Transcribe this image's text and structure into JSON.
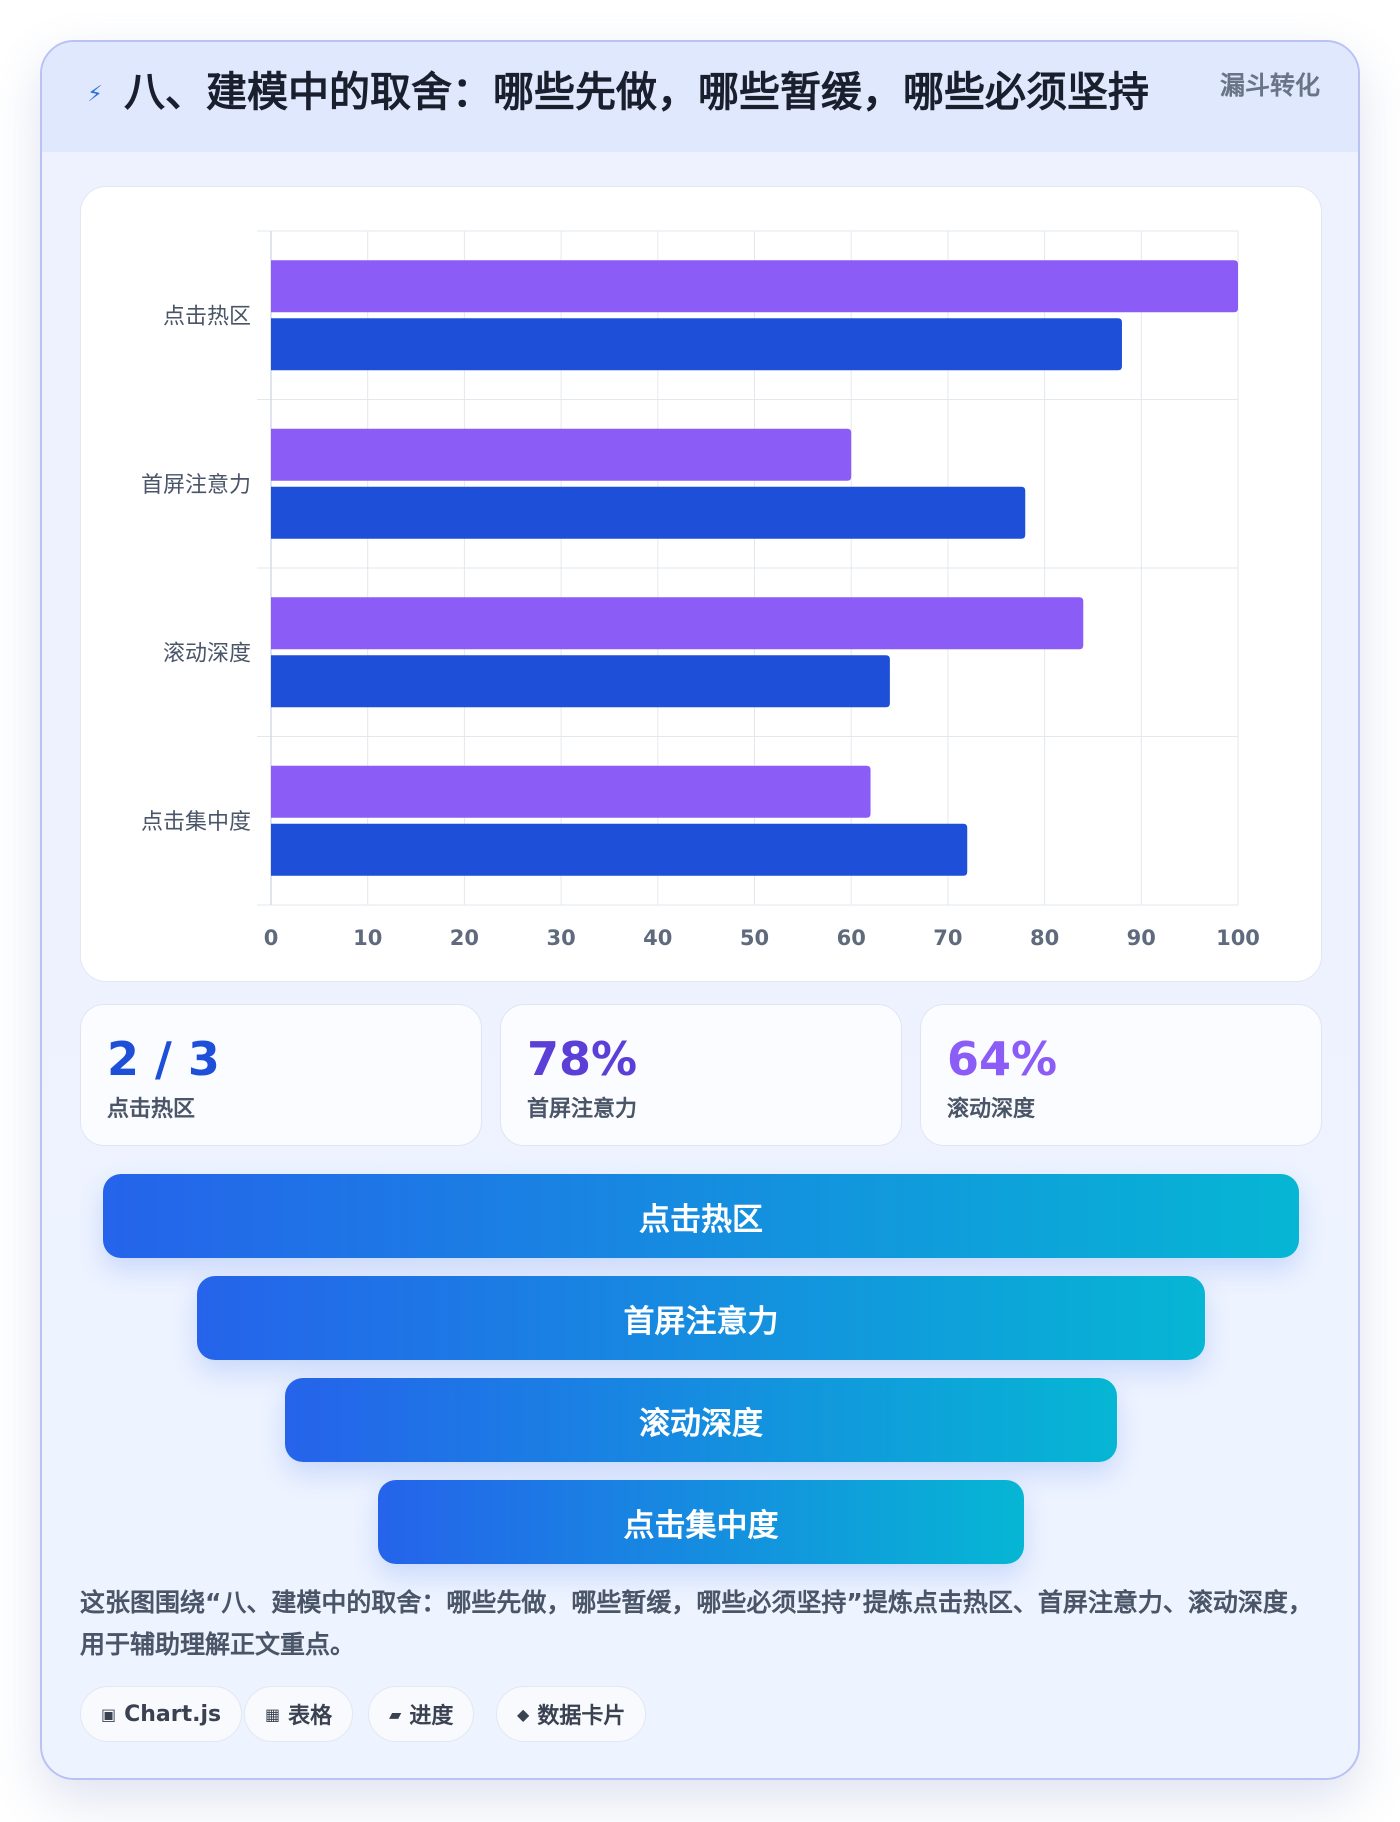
{
  "header": {
    "title": "八、建模中的取舍：哪些先做，哪些暂缓，哪些必须坚持",
    "tag": "漏斗转化",
    "icon": "lightning-icon"
  },
  "chart_data": {
    "type": "bar",
    "orientation": "horizontal",
    "categories": [
      "点击热区",
      "首屏注意力",
      "滚动深度",
      "点击集中度"
    ],
    "series": [
      {
        "values": [
          100,
          60,
          84,
          62
        ],
        "color": "#8b5cf6"
      },
      {
        "values": [
          88,
          78,
          64,
          72
        ],
        "color": "#1d4fd8"
      }
    ],
    "xlim": [
      0,
      100
    ],
    "xticks": [
      0,
      10,
      20,
      30,
      40,
      50,
      60,
      70,
      80,
      90,
      100
    ],
    "grid": true,
    "legend": "none"
  },
  "stats": [
    {
      "value": "2 / 3",
      "label": "点击热区",
      "color": "#1d4fd8"
    },
    {
      "value": "78%",
      "label": "首屏注意力",
      "color": "#5b3fd6"
    },
    {
      "value": "64%",
      "label": "滚动深度",
      "color": "#8b5cf6"
    }
  ],
  "funnel": [
    {
      "label": "点击热区"
    },
    {
      "label": "首屏注意力"
    },
    {
      "label": "滚动深度"
    },
    {
      "label": "点击集中度"
    }
  ],
  "summary": "这张图围绕“八、建模中的取舍：哪些先做，哪些暂缓，哪些必须坚持”提炼点击热区、首屏注意力、滚动深度，用于辅助理解正文重点。",
  "chips": [
    {
      "icon": "chart-icon",
      "glyph": "▣",
      "label": "Chart.js"
    },
    {
      "icon": "table-icon",
      "glyph": "▦",
      "label": "表格"
    },
    {
      "icon": "progress-icon",
      "glyph": "▰",
      "label": "进度"
    },
    {
      "icon": "data-card-icon",
      "glyph": "◆",
      "label": "数据卡片"
    }
  ]
}
